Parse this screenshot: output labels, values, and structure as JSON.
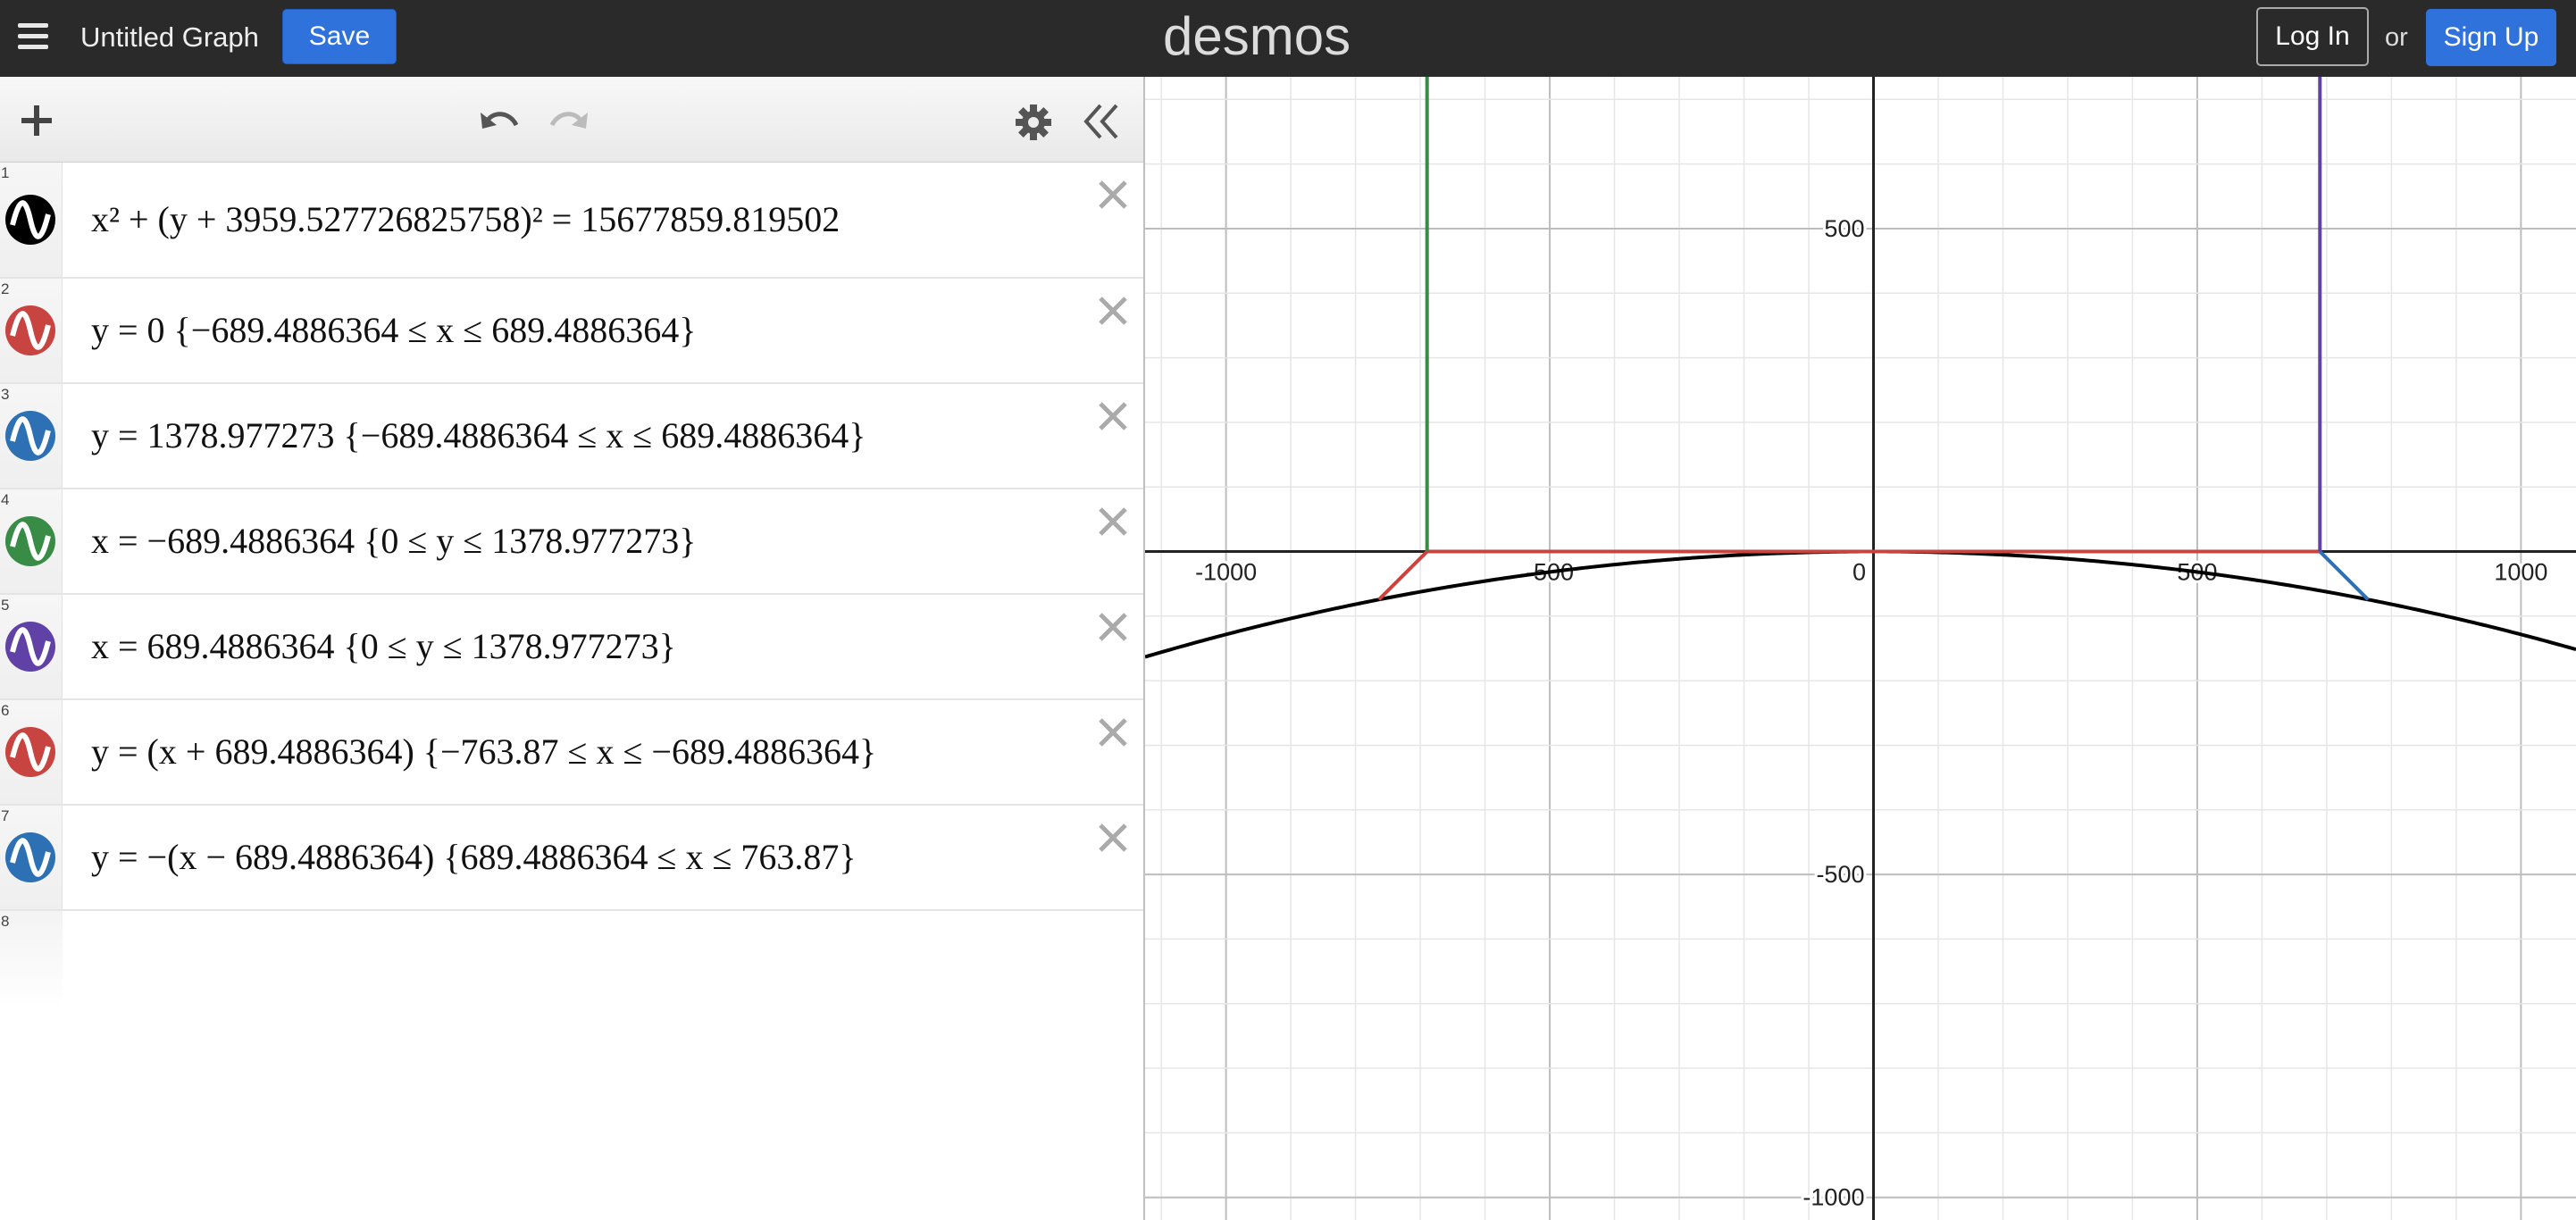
{
  "header": {
    "title": "Untitled Graph",
    "save_label": "Save",
    "brand": "desmos",
    "login_label": "Log In",
    "or_text": "or",
    "signup_label": "Sign Up"
  },
  "expressions": [
    {
      "num": "1",
      "color": "#000000",
      "formula": "x² + (y + 3959.527726825758)² = 15677859.819502"
    },
    {
      "num": "2",
      "color": "#c74440",
      "formula": "y = 0 {−689.4886364 ≤ x ≤ 689.4886364}"
    },
    {
      "num": "3",
      "color": "#2d70b3",
      "formula": "y = 1378.977273 {−689.4886364 ≤ x ≤ 689.4886364}"
    },
    {
      "num": "4",
      "color": "#388c46",
      "formula": "x = −689.4886364 {0 ≤ y ≤ 1378.977273}"
    },
    {
      "num": "5",
      "color": "#6042a6",
      "formula": "x = 689.4886364 {0 ≤ y ≤ 1378.977273}"
    },
    {
      "num": "6",
      "color": "#c74440",
      "formula": "y = (x + 689.4886364) {−763.87 ≤ x ≤ −689.4886364}"
    },
    {
      "num": "7",
      "color": "#2d70b3",
      "formula": "y = −(x − 689.4886364) {689.4886364 ≤ x ≤ 763.87}"
    }
  ],
  "next_row_num": "8",
  "graph": {
    "x_range": [
      -1125,
      1085
    ],
    "y_range": [
      -1035,
      735
    ],
    "minor_step": 100,
    "major_step": 500,
    "x_tick_labels": [
      "-1000",
      "-500",
      "0",
      "500",
      "1000"
    ],
    "y_tick_labels": [
      "500",
      "-500",
      "-1000"
    ],
    "circle": {
      "h": 0,
      "k": -3959.527726825758,
      "r_squared": 15677859.819502
    },
    "half_width": 689.4886364,
    "height": 1378.977273,
    "diag_end": 763.87
  },
  "colors": {
    "black": "#000000",
    "red": "#c74440",
    "blue": "#2d70b3",
    "green": "#388c46",
    "purple": "#6042a6",
    "accent": "#2f72dc"
  }
}
